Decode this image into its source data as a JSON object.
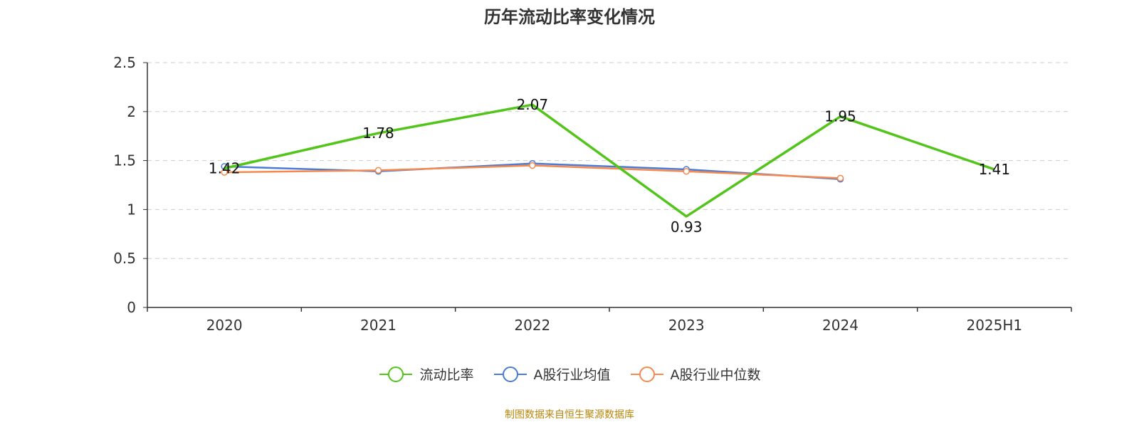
{
  "chart_data": {
    "type": "line",
    "title": "历年流动比率变化情况",
    "categories": [
      "2020",
      "2021",
      "2022",
      "2023",
      "2024",
      "2025H1"
    ],
    "ylim": [
      0,
      2.5
    ],
    "yticks": [
      0,
      0.5,
      1,
      1.5,
      2,
      2.5
    ],
    "grid": true,
    "legend_position": "bottom",
    "series": [
      {
        "name": "流动比率",
        "color": "#52c41a",
        "values": [
          1.42,
          1.78,
          2.07,
          0.93,
          1.95,
          1.41
        ],
        "labels": [
          "1.42",
          "1.78",
          "2.07",
          "0.93",
          "1.95",
          "1.41"
        ]
      },
      {
        "name": "A股行业均值",
        "color": "#4a7bd5",
        "values": [
          1.44,
          1.39,
          1.47,
          1.41,
          1.31,
          null
        ]
      },
      {
        "name": "A股行业中位数",
        "color": "#f5894e",
        "values": [
          1.38,
          1.4,
          1.45,
          1.39,
          1.32,
          null
        ]
      }
    ]
  },
  "footer": {
    "source": "制图数据来自恒生聚源数据库"
  }
}
